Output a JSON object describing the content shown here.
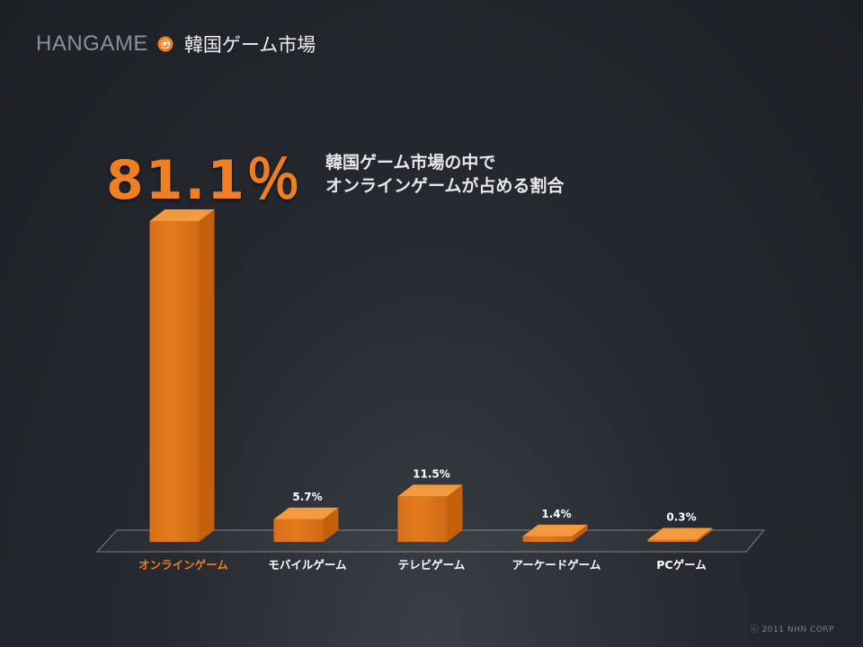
{
  "header": {
    "brand": "HANGAME",
    "logo_icon": "hangame-g-logo-icon",
    "title": "韓国ゲーム市場"
  },
  "highlight": {
    "value": "81.1％",
    "line1": "韓国ゲーム市場の中で",
    "line2": "オンラインゲームが占める割合"
  },
  "chart_data": {
    "type": "bar",
    "categories": [
      "オンラインゲーム",
      "モバイルゲーム",
      "テレビゲーム",
      "アーケードゲーム",
      "PCゲーム"
    ],
    "values": [
      81.1,
      5.7,
      11.5,
      1.4,
      0.3
    ],
    "value_labels": [
      "",
      "5.7%",
      "11.5%",
      "1.4%",
      "0.3%"
    ],
    "unit": "%",
    "highlight_index": 0,
    "colors": {
      "bar_front": "#e47a1c",
      "bar_side": "#c45f0c",
      "bar_top": "#f39a3e",
      "highlight_label": "#f07e22",
      "label": "#ffffff"
    }
  },
  "footer": {
    "copyright": "ⓒ 2011 NHN CORP"
  }
}
